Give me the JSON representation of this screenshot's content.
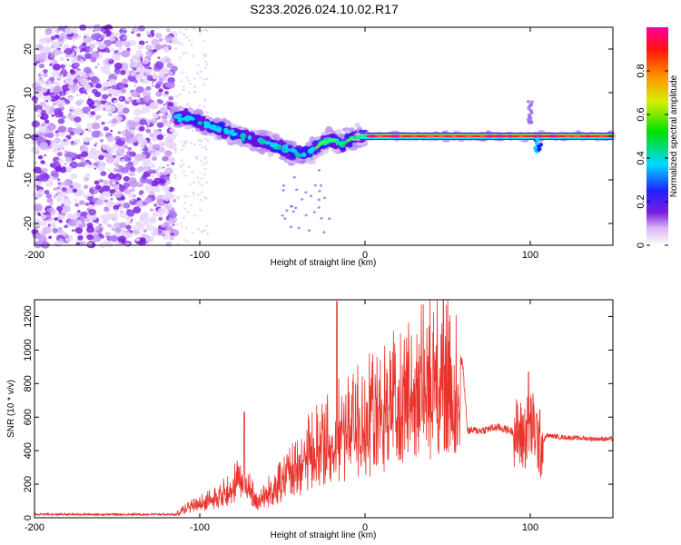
{
  "title": "S233.2026.024.10.02.R17",
  "chart_data": [
    {
      "type": "heatmap",
      "xlabel": "Height of straight line (km)",
      "ylabel": "Frequency (Hz)",
      "xlim": [
        -200,
        150
      ],
      "ylim": [
        -25,
        25
      ],
      "xticks": [
        -200,
        -100,
        0,
        100
      ],
      "yticks": [
        -20,
        -10,
        0,
        10,
        20
      ],
      "colorbar": {
        "label": "Normalized spectral amplitude",
        "range": [
          0,
          1
        ],
        "ticks": [
          0,
          0.2,
          0.4,
          0.6,
          0.8
        ]
      },
      "tone_path": {
        "x": [
          -115,
          -105,
          -95,
          -85,
          -75,
          -65,
          -55,
          -45,
          -38,
          -32,
          -26,
          -20,
          -14,
          -8,
          -3,
          0,
          20,
          40,
          60,
          80,
          100,
          104,
          108,
          120,
          140,
          150
        ],
        "y": [
          4.5,
          4.0,
          2.5,
          1.2,
          0.2,
          -1.0,
          -2.0,
          -3.5,
          -4.0,
          -3.5,
          -1.5,
          -0.8,
          -1.8,
          -0.5,
          0.0,
          0.0,
          0.0,
          0.0,
          0.0,
          0.0,
          0.0,
          -2.5,
          0.0,
          0.0,
          0.0,
          0.0
        ]
      },
      "noise_region": [
        -200,
        -115
      ]
    },
    {
      "type": "line",
      "xlabel": "Height of straight line (km)",
      "ylabel": "SNR (10 * v/v)",
      "xlim": [
        -200,
        150
      ],
      "ylim": [
        0,
        1300
      ],
      "xticks": [
        -200,
        -100,
        0,
        100
      ],
      "yticks": [
        0,
        200,
        400,
        600,
        800,
        1000,
        1200
      ],
      "color": "#e8332c",
      "envelope": {
        "x": [
          -200,
          -115,
          -105,
          -95,
          -85,
          -75,
          -65,
          -55,
          -45,
          -35,
          -25,
          -15,
          -5,
          5,
          15,
          25,
          35,
          45,
          55,
          59,
          62,
          70,
          80,
          88,
          96,
          100,
          103,
          106,
          110,
          120,
          130,
          140,
          150
        ],
        "y": [
          20,
          20,
          80,
          120,
          170,
          260,
          120,
          200,
          300,
          420,
          500,
          580,
          640,
          700,
          770,
          850,
          900,
          920,
          930,
          930,
          520,
          520,
          540,
          520,
          480,
          560,
          520,
          430,
          490,
          480,
          475,
          470,
          470
        ]
      },
      "spikes": [
        {
          "x": -73,
          "y": 630
        },
        {
          "x": -17,
          "y": 1290
        },
        {
          "x": 99,
          "y": 870
        }
      ]
    }
  ]
}
